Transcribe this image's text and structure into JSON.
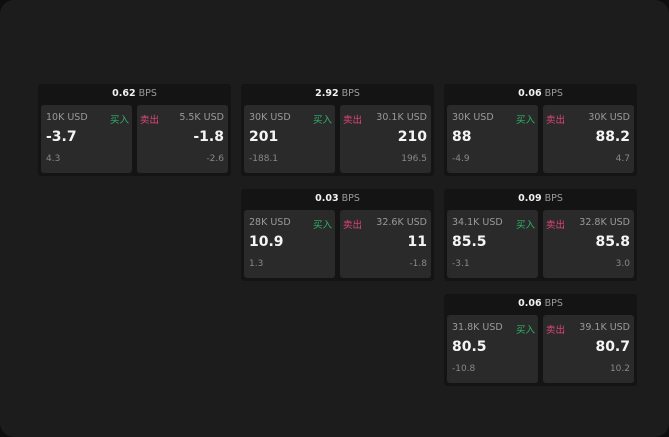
{
  "unit_label": "BPS",
  "buy_label": "买入",
  "sell_label": "卖出",
  "colors": {
    "buy": "#2fb36a",
    "sell": "#e0457b"
  },
  "cards": [
    {
      "spread": "0.62",
      "buy": {
        "size": "10K USD",
        "price": "-3.7",
        "change": "4.3"
      },
      "sell": {
        "size": "5.5K USD",
        "price": "-1.8",
        "change": "-2.6"
      }
    },
    {
      "spread": "2.92",
      "buy": {
        "size": "30K USD",
        "price": "201",
        "change": "-188.1"
      },
      "sell": {
        "size": "30.1K USD",
        "price": "210",
        "change": "196.5"
      }
    },
    {
      "spread": "0.06",
      "buy": {
        "size": "30K USD",
        "price": "88",
        "change": "-4.9"
      },
      "sell": {
        "size": "30K USD",
        "price": "88.2",
        "change": "4.7"
      }
    },
    {
      "spread": "0.03",
      "buy": {
        "size": "28K USD",
        "price": "10.9",
        "change": "1.3"
      },
      "sell": {
        "size": "32.6K USD",
        "price": "11",
        "change": "-1.8"
      }
    },
    {
      "spread": "0.09",
      "buy": {
        "size": "34.1K USD",
        "price": "85.5",
        "change": "-3.1"
      },
      "sell": {
        "size": "32.8K USD",
        "price": "85.8",
        "change": "3.0"
      }
    },
    {
      "spread": "0.06",
      "buy": {
        "size": "31.8K USD",
        "price": "80.5",
        "change": "-10.8"
      },
      "sell": {
        "size": "39.1K USD",
        "price": "80.7",
        "change": "10.2"
      }
    }
  ]
}
